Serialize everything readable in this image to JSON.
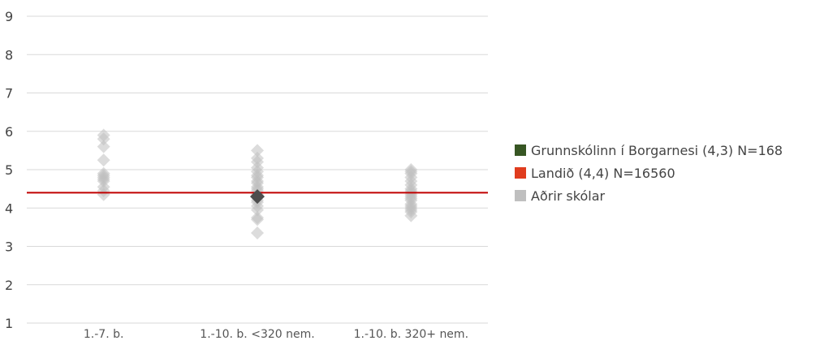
{
  "chart_data": {
    "type": "scatter",
    "title": "",
    "xlabel": "",
    "ylabel": "",
    "ylim": [
      1,
      9
    ],
    "yticks": [
      "1",
      "2",
      "3",
      "4",
      "5",
      "6",
      "7",
      "8",
      "9"
    ],
    "categories": [
      "1.-7. b.",
      "1.-10. b. <320 nem.",
      "1.-10. b. 320+ nem."
    ],
    "grid": true,
    "legend_position": "right",
    "series": [
      {
        "name": "Grunnskólinn í Borgarnesi (4,3) N=168",
        "color": "#375623",
        "points": [
          {
            "category": "1.-10. b. <320 nem.",
            "y": 4.3
          }
        ]
      },
      {
        "name": "Landið (4,4) N=16560",
        "color": "#e03c1e",
        "line_color": "#c00000",
        "reference_line": 4.4
      },
      {
        "name": "Aðrir skólar",
        "color": "#bfbfbf",
        "points": [
          {
            "category": "1.-7. b.",
            "y": 5.9
          },
          {
            "category": "1.-7. b.",
            "y": 5.8
          },
          {
            "category": "1.-7. b.",
            "y": 5.6
          },
          {
            "category": "1.-7. b.",
            "y": 5.25
          },
          {
            "category": "1.-7. b.",
            "y": 4.9
          },
          {
            "category": "1.-7. b.",
            "y": 4.85
          },
          {
            "category": "1.-7. b.",
            "y": 4.8
          },
          {
            "category": "1.-7. b.",
            "y": 4.75
          },
          {
            "category": "1.-7. b.",
            "y": 4.7
          },
          {
            "category": "1.-7. b.",
            "y": 4.55
          },
          {
            "category": "1.-7. b.",
            "y": 4.45
          },
          {
            "category": "1.-7. b.",
            "y": 4.35
          },
          {
            "category": "1.-10. b. <320 nem.",
            "y": 5.5
          },
          {
            "category": "1.-10. b. <320 nem.",
            "y": 5.3
          },
          {
            "category": "1.-10. b. <320 nem.",
            "y": 5.2
          },
          {
            "category": "1.-10. b. <320 nem.",
            "y": 5.05
          },
          {
            "category": "1.-10. b. <320 nem.",
            "y": 4.95
          },
          {
            "category": "1.-10. b. <320 nem.",
            "y": 4.85
          },
          {
            "category": "1.-10. b. <320 nem.",
            "y": 4.8
          },
          {
            "category": "1.-10. b. <320 nem.",
            "y": 4.7
          },
          {
            "category": "1.-10. b. <320 nem.",
            "y": 4.65
          },
          {
            "category": "1.-10. b. <320 nem.",
            "y": 4.55
          },
          {
            "category": "1.-10. b. <320 nem.",
            "y": 4.5
          },
          {
            "category": "1.-10. b. <320 nem.",
            "y": 4.45
          },
          {
            "category": "1.-10. b. <320 nem.",
            "y": 4.35
          },
          {
            "category": "1.-10. b. <320 nem.",
            "y": 4.2
          },
          {
            "category": "1.-10. b. <320 nem.",
            "y": 4.15
          },
          {
            "category": "1.-10. b. <320 nem.",
            "y": 4.05
          },
          {
            "category": "1.-10. b. <320 nem.",
            "y": 3.95
          },
          {
            "category": "1.-10. b. <320 nem.",
            "y": 3.75
          },
          {
            "category": "1.-10. b. <320 nem.",
            "y": 3.7
          },
          {
            "category": "1.-10. b. <320 nem.",
            "y": 3.35
          },
          {
            "category": "1.-10. b. 320+ nem.",
            "y": 5.0
          },
          {
            "category": "1.-10. b. 320+ nem.",
            "y": 4.95
          },
          {
            "category": "1.-10. b. 320+ nem.",
            "y": 4.9
          },
          {
            "category": "1.-10. b. 320+ nem.",
            "y": 4.8
          },
          {
            "category": "1.-10. b. 320+ nem.",
            "y": 4.7
          },
          {
            "category": "1.-10. b. 320+ nem.",
            "y": 4.6
          },
          {
            "category": "1.-10. b. 320+ nem.",
            "y": 4.5
          },
          {
            "category": "1.-10. b. 320+ nem.",
            "y": 4.45
          },
          {
            "category": "1.-10. b. 320+ nem.",
            "y": 4.4
          },
          {
            "category": "1.-10. b. 320+ nem.",
            "y": 4.35
          },
          {
            "category": "1.-10. b. 320+ nem.",
            "y": 4.3
          },
          {
            "category": "1.-10. b. 320+ nem.",
            "y": 4.25
          },
          {
            "category": "1.-10. b. 320+ nem.",
            "y": 4.2
          },
          {
            "category": "1.-10. b. 320+ nem.",
            "y": 4.1
          },
          {
            "category": "1.-10. b. 320+ nem.",
            "y": 4.05
          },
          {
            "category": "1.-10. b. 320+ nem.",
            "y": 4.0
          },
          {
            "category": "1.-10. b. 320+ nem.",
            "y": 3.95
          },
          {
            "category": "1.-10. b. 320+ nem.",
            "y": 3.9
          },
          {
            "category": "1.-10. b. 320+ nem.",
            "y": 3.8
          }
        ]
      }
    ],
    "colors": {
      "gridline": "#d9d9d9",
      "other_points": "#bfbfbf",
      "highlight_point": "#4d4d4d",
      "reference_line": "#c00000"
    }
  }
}
